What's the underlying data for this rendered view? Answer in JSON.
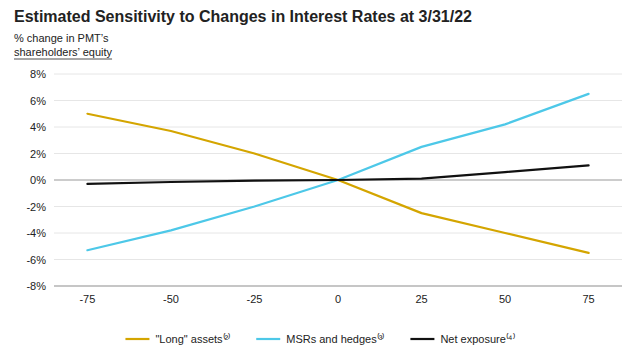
{
  "chart_data": {
    "type": "line",
    "title": "Estimated Sensitivity to Changes in Interest Rates at 3/31/22",
    "ylabel": [
      "% change in PMT’s",
      "shareholders’ equity"
    ],
    "x": [
      -75,
      -50,
      -25,
      0,
      25,
      50,
      75
    ],
    "series": [
      {
        "name": "\"Long\" assets⁽²⁾",
        "color": "#D4A500",
        "values": [
          5.0,
          3.7,
          2.0,
          0.0,
          -2.5,
          -4.0,
          -5.5
        ]
      },
      {
        "name": "MSRs and hedges⁽³⁾",
        "color": "#4DC8E8",
        "values": [
          -5.3,
          -3.8,
          -2.0,
          0.0,
          2.5,
          4.2,
          6.5
        ]
      },
      {
        "name": "Net exposure⁽⁴⁾",
        "color": "#111111",
        "values": [
          -0.3,
          -0.15,
          -0.05,
          0.0,
          0.1,
          0.6,
          1.1
        ]
      }
    ],
    "xlim": [
      -85,
      85
    ],
    "xticks": [
      -75,
      -50,
      -25,
      0,
      25,
      50,
      75
    ],
    "ylim": [
      -8,
      8
    ],
    "yticks": [
      {
        "value": -8,
        "label": "-8%"
      },
      {
        "value": -6,
        "label": "-6%"
      },
      {
        "value": -4,
        "label": "-4%"
      },
      {
        "value": -2,
        "label": "-2%"
      },
      {
        "value": 0,
        "label": "0%"
      },
      {
        "value": 2,
        "label": "2%"
      },
      {
        "value": 4,
        "label": "4%"
      },
      {
        "value": 6,
        "label": "6%"
      },
      {
        "value": 8,
        "label": "8%"
      }
    ],
    "grid": "y",
    "legend": "bottom"
  }
}
